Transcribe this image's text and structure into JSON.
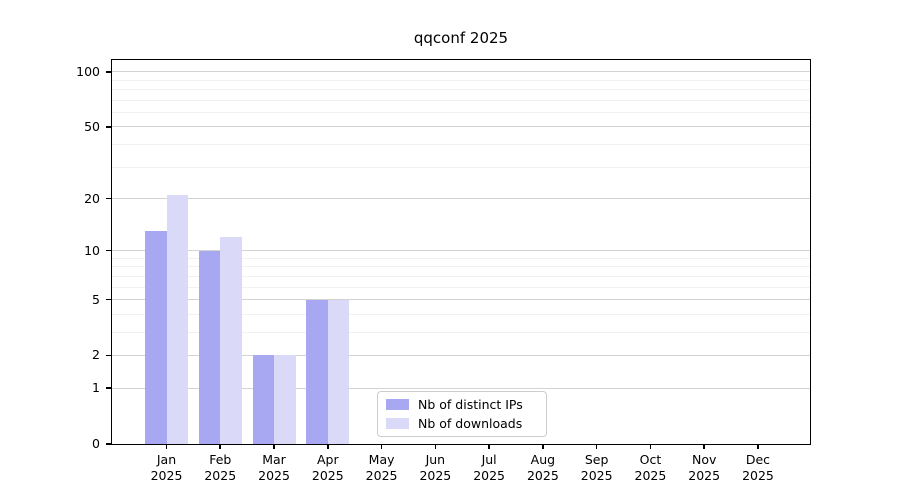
{
  "title": "qqconf 2025",
  "chart_data": {
    "type": "bar",
    "title": "qqconf 2025",
    "categories": [
      "Jan",
      "Feb",
      "Mar",
      "Apr",
      "May",
      "Jun",
      "Jul",
      "Aug",
      "Sep",
      "Oct",
      "Nov",
      "Dec"
    ],
    "category_year": "2025",
    "series": [
      {
        "name": "Nb of distinct IPs",
        "color": "#a8a8f2",
        "values": [
          13,
          10,
          2,
          5,
          0,
          0,
          0,
          0,
          0,
          0,
          0,
          0
        ]
      },
      {
        "name": "Nb of downloads",
        "color": "#dadaf8",
        "values": [
          21,
          12,
          2,
          5,
          0,
          0,
          0,
          0,
          0,
          0,
          0,
          0
        ]
      }
    ],
    "xlabel": "",
    "ylabel": "",
    "y_scale": "log1p",
    "ylim": [
      0,
      116
    ],
    "y_major_ticks": [
      0,
      1,
      2,
      5,
      10,
      20,
      50,
      100
    ],
    "y_minor_gridlines": [
      3,
      4,
      6,
      7,
      8,
      9,
      30,
      40,
      60,
      70,
      80,
      90
    ],
    "grid": true,
    "grid_major_color": "#d3d3d3",
    "grid_minor_color": "#f1f1f5",
    "spine_color": "#000000",
    "legend_position": "lower center"
  }
}
